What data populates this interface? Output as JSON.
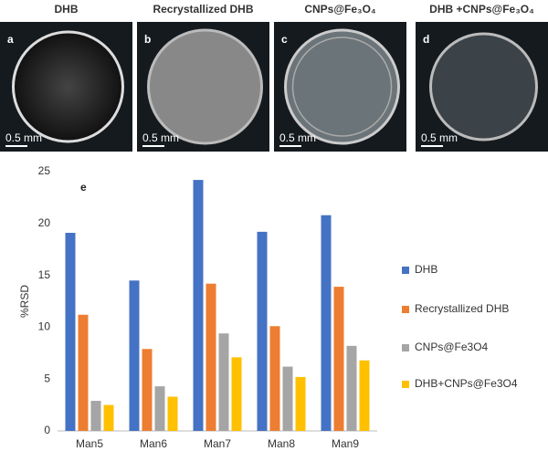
{
  "panels": [
    {
      "letter": "a",
      "title": "DHB",
      "scale": "0.5 mm"
    },
    {
      "letter": "b",
      "title": "Recrystallized DHB",
      "scale": "0.5 mm"
    },
    {
      "letter": "c",
      "title": "CNPs@Fe₃O₄",
      "scale": "0.5 mm"
    },
    {
      "letter": "d",
      "title": "DHB +CNPs@Fe₃O₄",
      "scale": "0.5 mm"
    }
  ],
  "chart_data": {
    "type": "bar",
    "label": "e",
    "y_label": "%RSD",
    "categories": [
      "Man5",
      "Man6",
      "Man7",
      "Man8",
      "Man9"
    ],
    "series": [
      {
        "name": "DHB",
        "color": "#4472c4",
        "values": [
          19.1,
          14.5,
          24.2,
          19.2,
          20.8
        ]
      },
      {
        "name": "Recrystallized DHB",
        "color": "#ed7d31",
        "values": [
          11.2,
          7.9,
          14.2,
          10.1,
          13.9
        ]
      },
      {
        "name": "CNPs@Fe3O4",
        "color": "#a5a5a5",
        "values": [
          2.9,
          4.3,
          9.4,
          6.2,
          8.2
        ]
      },
      {
        "name": "DHB+CNPs@Fe3O4",
        "color": "#ffc000",
        "values": [
          2.5,
          3.3,
          7.1,
          5.2,
          6.8
        ]
      }
    ],
    "ylim": [
      0,
      25
    ],
    "yticks": [
      0,
      5,
      10,
      15,
      20,
      25
    ],
    "grid": false,
    "legend": "right"
  }
}
